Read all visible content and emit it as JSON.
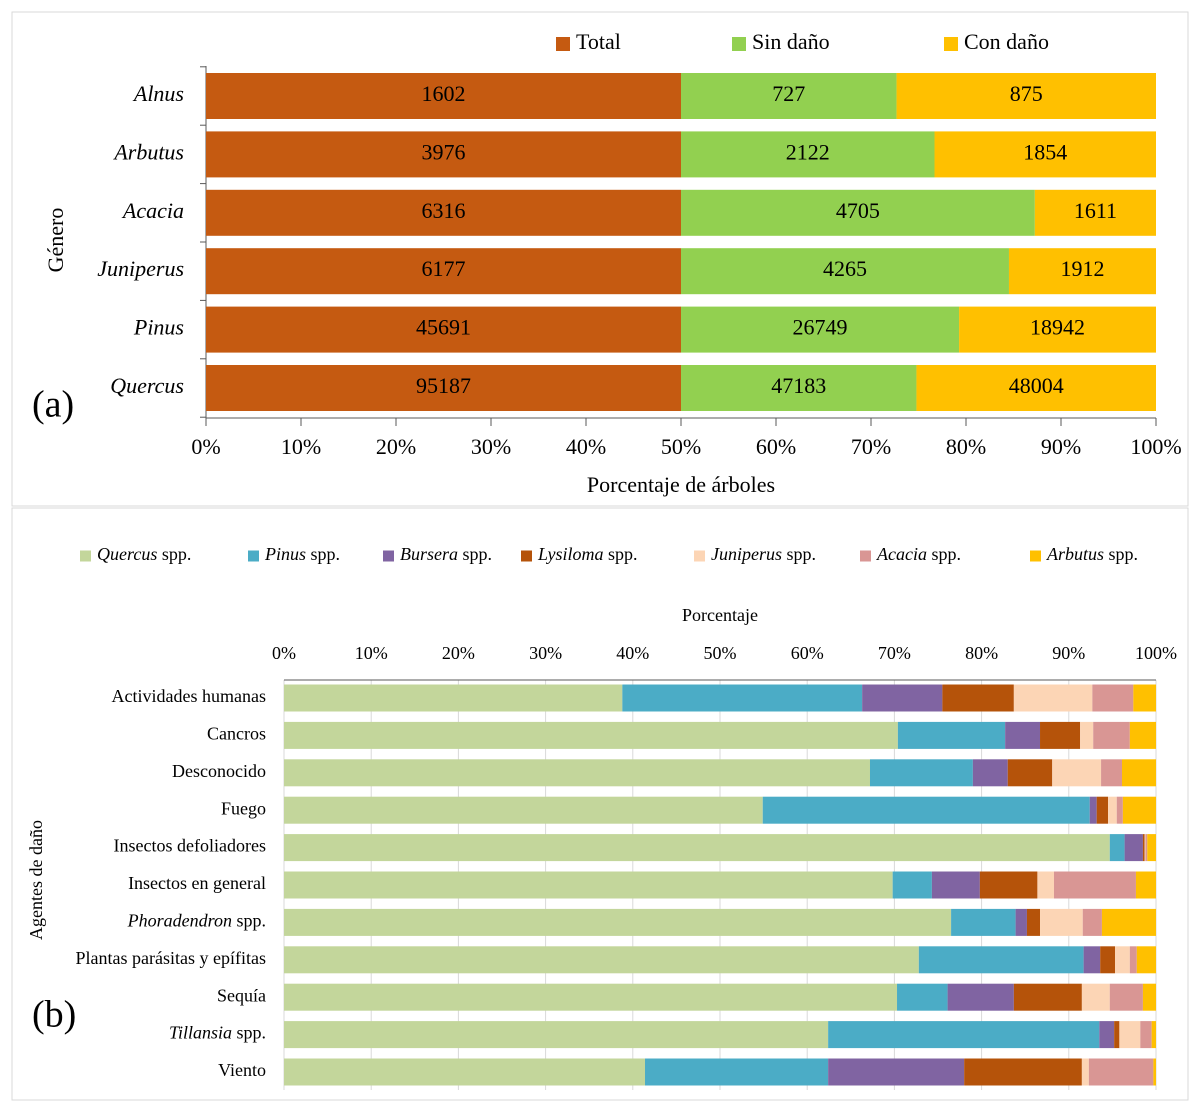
{
  "chart_data": [
    {
      "type": "bar",
      "orientation": "horizontal",
      "stacking": "percent",
      "panel_label": "(a)",
      "x_label": "Porcentaje de árboles",
      "y_label": "Género",
      "categories_italic": true,
      "categories": [
        "Alnus",
        "Arbutus",
        "Acacia",
        "Juniperus",
        "Pinus",
        "Quercus"
      ],
      "series": [
        {
          "name": "Total",
          "color": "#c55a11",
          "label_color": "#ffffff",
          "values": [
            1602,
            3976,
            6316,
            6177,
            45691,
            95187
          ]
        },
        {
          "name": "Sin daño",
          "color": "#92d050",
          "label_color": "#000000",
          "values": [
            727,
            2122,
            4705,
            4265,
            26749,
            47183
          ]
        },
        {
          "name": "Con daño",
          "color": "#ffc000",
          "label_color": "#000000",
          "values": [
            875,
            1854,
            1611,
            1912,
            18942,
            48004
          ]
        }
      ],
      "data_labels": true,
      "xlim": [
        0,
        100
      ],
      "xticks": [
        {
          "value": 0,
          "label": "0%"
        },
        {
          "value": 10,
          "label": "10%"
        },
        {
          "value": 20,
          "label": "20%"
        },
        {
          "value": 30,
          "label": "30%"
        },
        {
          "value": 40,
          "label": "40%"
        },
        {
          "value": 50,
          "label": "50%"
        },
        {
          "value": 60,
          "label": "60%"
        },
        {
          "value": 70,
          "label": "70%"
        },
        {
          "value": 80,
          "label": "80%"
        },
        {
          "value": 90,
          "label": "90%"
        },
        {
          "value": 100,
          "label": "100%"
        }
      ],
      "grid": false,
      "legend": "top"
    },
    {
      "type": "bar",
      "orientation": "horizontal",
      "stacking": "percent",
      "panel_label": "(b)",
      "x_label": "Porcentaje",
      "y_label": "Agentes de daño",
      "categories_italic": false,
      "categories": [
        "Actividades humanas",
        "Cancros",
        "Desconocido",
        "Fuego",
        "Insectos defoliadores",
        "Insectos en general",
        "Phoradendron spp.",
        "Plantas parásitas y epífitas",
        "Sequía",
        "Tillansia spp.",
        "Viento"
      ],
      "italic_genus_categories": [
        "Phoradendron spp.",
        "Tillansia spp."
      ],
      "series": [
        {
          "name": "Quercus spp.",
          "color": "#c3d69b",
          "values": [
            38.8,
            70.4,
            67.2,
            54.9,
            94.7,
            69.8,
            76.5,
            72.8,
            70.3,
            62.4,
            41.4
          ]
        },
        {
          "name": "Pinus spp.",
          "color": "#4bacc6",
          "values": [
            27.5,
            12.3,
            11.8,
            37.5,
            1.7,
            4.5,
            7.4,
            18.9,
            5.8,
            31.1,
            21.0
          ]
        },
        {
          "name": "Bursera spp.",
          "color": "#8064a2",
          "values": [
            9.2,
            4.0,
            4.0,
            0.8,
            2.1,
            5.5,
            1.3,
            1.9,
            7.6,
            1.7,
            15.6
          ]
        },
        {
          "name": "Lysiloma spp.",
          "color": "#b5530a",
          "values": [
            8.2,
            4.6,
            5.1,
            1.3,
            0.2,
            6.6,
            1.5,
            1.7,
            7.8,
            0.6,
            13.5
          ]
        },
        {
          "name": "Juniperus spp.",
          "color": "#fcd5b5",
          "values": [
            9.0,
            1.5,
            5.6,
            1.0,
            0.1,
            1.9,
            4.9,
            1.7,
            3.2,
            2.4,
            0.8
          ]
        },
        {
          "name": "Acacia spp.",
          "color": "#d99694",
          "values": [
            4.7,
            4.2,
            2.4,
            0.7,
            0.2,
            9.4,
            2.2,
            0.8,
            3.8,
            1.3,
            7.4
          ]
        },
        {
          "name": "Arbutus spp.",
          "color": "#ffc000",
          "values": [
            2.6,
            3.0,
            3.9,
            3.8,
            1.0,
            2.3,
            6.2,
            2.2,
            1.5,
            0.5,
            0.3
          ]
        }
      ],
      "data_labels": false,
      "xlim": [
        0,
        100
      ],
      "xticks": [
        {
          "value": 0,
          "label": "0%"
        },
        {
          "value": 10,
          "label": "10%"
        },
        {
          "value": 20,
          "label": "20%"
        },
        {
          "value": 30,
          "label": "30%"
        },
        {
          "value": 40,
          "label": "40%"
        },
        {
          "value": 50,
          "label": "50%"
        },
        {
          "value": 60,
          "label": "60%"
        },
        {
          "value": 70,
          "label": "70%"
        },
        {
          "value": 80,
          "label": "80%"
        },
        {
          "value": 90,
          "label": "90%"
        },
        {
          "value": 100,
          "label": "100%"
        }
      ],
      "grid": true,
      "legend": "top"
    }
  ]
}
